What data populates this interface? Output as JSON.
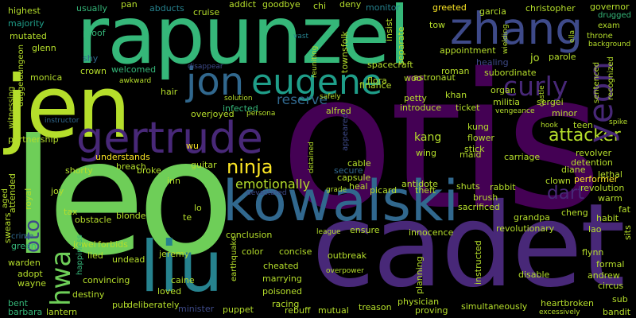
{
  "palette": {
    "background": "#000000",
    "deep_purple": "#440154",
    "purple": "#482878",
    "indigo": "#3e4a89",
    "blue": "#31688e",
    "teal": "#26828e",
    "green_teal": "#1f9e89",
    "green": "#35b779",
    "light_green": "#6ece58",
    "lime": "#b5de2b",
    "yellow": "#fde725"
  },
  "words": {
    "otis": "otis",
    "leo": "leo",
    "cadet": "cadet",
    "rapunzel": "rapunzel",
    "jen": "jen",
    "kowalski": "kowalski",
    "liu": "liu",
    "gertrude": "gertrude",
    "zhang": "zhang",
    "eugene": "eugene",
    "jon": "jon",
    "yeon": "yeon",
    "curly": "curly",
    "hwa": "hwa",
    "ninja": "ninja",
    "attacker": "attacker",
    "dart": "dart",
    "emotionally": "emotionally",
    "reserve": "reserve",
    "kang": "kang",
    "oto": "oto",
    "highest": "highest",
    "majority": "majority",
    "mutated": "mutated",
    "glenn": "glenn",
    "usually": "usually",
    "pan": "pan",
    "abducts": "abducts",
    "cruise": "cruise",
    "addict": "addict",
    "goodbye": "goodbye",
    "chi": "chi",
    "deny": "deny",
    "monitor": "monitor",
    "greeted": "greeted",
    "garcia": "garcia",
    "christopher": "christopher",
    "governor": "governor",
    "drugged": "drugged",
    "exam": "exam",
    "throne": "throne",
    "background": "background",
    "proof": "proof",
    "shy": "shy",
    "crown": "crown",
    "welcomed": "welcomed",
    "disappear": "disappear",
    "vast": "vast",
    "tow": "tow",
    "spacecraft": "spacecraft",
    "appointment": "appointment",
    "roman": "roman",
    "healing": "healing",
    "subordinate": "subordinate",
    "parole": "parole",
    "sentenced": "sentenced",
    "recognized": "recognized",
    "monica": "monica",
    "awkward": "awkward",
    "hair": "hair",
    "solution": "solution",
    "persona": "persona",
    "safely": "safely",
    "astronaut": "astronaut",
    "woo": "woo",
    "finance": "finance",
    "flora": "flora",
    "jo": "jo",
    "organ": "organ",
    "militia": "militia",
    "sergei": "sergei",
    "minor": "minor",
    "teen": "teen",
    "petty": "petty",
    "khan": "khan",
    "introduce": "introduce",
    "ticket": "ticket",
    "infected": "infected",
    "overjoyed": "overjoyed",
    "alfred": "alfred",
    "instructor": "instructor",
    "vengeance": "vengeance",
    "hook": "hook",
    "spike": "spike",
    "partnership": "partnership",
    "witnessing": "witnessing",
    "dagger": "dagger",
    "understands": "understands",
    "breach": "breach",
    "wu": "wu",
    "kung": "kung",
    "flower": "flower",
    "stick": "stick",
    "carriage": "carriage",
    "revolver": "revolver",
    "detention": "detention",
    "lethal": "lethal",
    "shorty": "shorty",
    "broke": "broke",
    "inn": "inn",
    "guitar": "guitar",
    "wing": "wing",
    "secure": "secure",
    "cable": "cable",
    "capsule": "capsule",
    "antidote": "antidote",
    "maid": "maid",
    "rabbit": "rabbit",
    "clown": "clown",
    "performer": "performer",
    "revolution": "revolution",
    "diane": "diane",
    "warm": "warm",
    "detained": "detained",
    "appeared": "appeared",
    "joy": "joy",
    "tax": "tax",
    "royal": "royal",
    "attended": "attended",
    "blonde": "blonde",
    "te": "te",
    "lo": "lo",
    "devastated": "devastated",
    "grade": "grade",
    "heal": "heal",
    "picard": "picard",
    "theft": "theft",
    "shuts": "shuts",
    "brush": "brush",
    "sacrificed": "sacrificed",
    "grandpa": "grandpa",
    "cheng": "cheng",
    "habit": "habit",
    "fat": "fat",
    "lao": "lao",
    "happiness": "happiness",
    "earthquake": "earthquake",
    "league": "league",
    "conclusion": "conclusion",
    "ensure": "ensure",
    "innocence": "innocence",
    "revolutionary": "revolutionary",
    "swears": "swears",
    "aged": "aged",
    "crime": "crime",
    "green": "green",
    "obstacle": "obstacle",
    "jewel": "jewel",
    "forbids": "forbids",
    "lied": "lied",
    "undead": "undead",
    "jeremy": "jeremy",
    "color": "color",
    "concise": "concise",
    "outbreak": "outbreak",
    "cheated": "cheated",
    "marrying": "marrying",
    "flynn": "flynn",
    "sits": "sits",
    "warden": "warden",
    "adopt": "adopt",
    "wayne": "wayne",
    "convincing": "convincing",
    "caine": "caine",
    "overpower": "overpower",
    "planning": "planning",
    "instructed": "instructed",
    "disable": "disable",
    "formal": "formal",
    "andrew": "andrew",
    "circus": "circus",
    "destiny": "destiny",
    "loved": "loved",
    "poisoned": "poisoned",
    "racing": "racing",
    "bent": "bent",
    "barbara": "barbara",
    "lantern": "lantern",
    "pub": "pub",
    "deliberately": "deliberately",
    "minister": "minister",
    "puppet": "puppet",
    "rebuff": "rebuff",
    "mutual": "mutual",
    "treason": "treason",
    "physician": "physician",
    "proving": "proving",
    "simultaneously": "simultaneously",
    "heartbroken": "heartbroken",
    "excessively": "excessively",
    "bandit": "bandit",
    "sub": "sub",
    "townsfolk": "townsfolk",
    "separate": "separate",
    "insist": "insist",
    "reuniting": "reuniting",
    "wielding": "wielding",
    "castle": "castle",
    "ella": "ella",
    "dungeon": "dungeon"
  }
}
